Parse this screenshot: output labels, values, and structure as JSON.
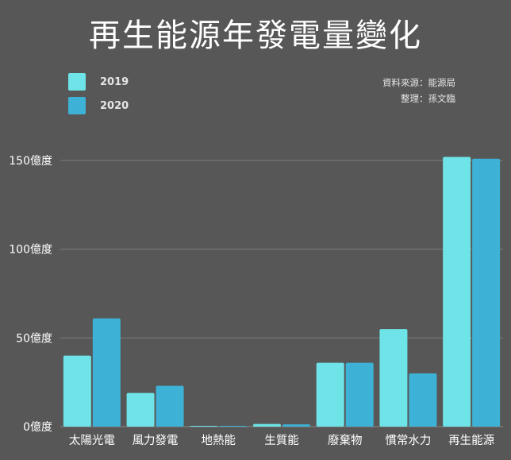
{
  "chart_data": {
    "type": "bar",
    "title": "再生能源年發電量變化",
    "categories": [
      "太陽光電",
      "風力發電",
      "地熱能",
      "生質能",
      "廢棄物",
      "慣常水力",
      "再生能源"
    ],
    "series": [
      {
        "name": "2019",
        "color": "#6ee3e8",
        "values": [
          40,
          19,
          0.2,
          1.5,
          36,
          55,
          152
        ]
      },
      {
        "name": "2020",
        "color": "#3db2d6",
        "values": [
          61,
          23,
          0.3,
          1.3,
          36,
          30,
          151
        ]
      }
    ],
    "yticks": [
      {
        "value": 0,
        "label": "0億度"
      },
      {
        "value": 50,
        "label": "50億度"
      },
      {
        "value": 100,
        "label": "100億度"
      },
      {
        "value": 150,
        "label": "150億度"
      }
    ],
    "ylim": [
      0,
      150
    ],
    "grid": true,
    "legend_position": "top-left"
  },
  "source": {
    "line1": "資料來源：能源局",
    "line2": "整理：孫文臨"
  }
}
